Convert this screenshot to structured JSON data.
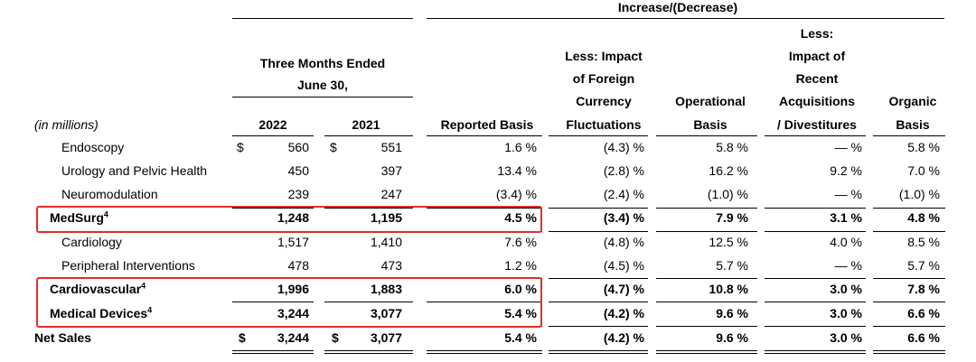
{
  "header": {
    "increase_group": "Increase/(Decrease)",
    "three_months_line1": "Three Months Ended",
    "three_months_line2": "June 30,",
    "in_millions": "(in millions)",
    "year_2022": "2022",
    "year_2021": "2021",
    "reported_basis": "Reported Basis",
    "fx_line1": "Less: Impact",
    "fx_line2": "of Foreign",
    "fx_line3": "Currency",
    "fx_line4": "Fluctuations",
    "op_line1": "Operational",
    "op_line2": "Basis",
    "acq_line1": "Less:",
    "acq_line2": "Impact of",
    "acq_line3": "Recent",
    "acq_line4": "Acquisitions",
    "acq_line5": "/ Divestitures",
    "org_line1": "Organic",
    "org_line2": "Basis"
  },
  "currency_symbol": "$",
  "footnote_marker": "4",
  "rows": [
    {
      "label": "Endoscopy",
      "v2022": "560",
      "v2021": "551",
      "reported": "1.6 %",
      "fx": "(4.3) %",
      "operational": "5.8 %",
      "acq": "— %",
      "organic": "5.8 %"
    },
    {
      "label": "Urology and Pelvic Health",
      "v2022": "450",
      "v2021": "397",
      "reported": "13.4 %",
      "fx": "(2.8) %",
      "operational": "16.2 %",
      "acq": "9.2 %",
      "organic": "7.0 %"
    },
    {
      "label": "Neuromodulation",
      "v2022": "239",
      "v2021": "247",
      "reported": "(3.4) %",
      "fx": "(2.4) %",
      "operational": "(1.0) %",
      "acq": "— %",
      "organic": "(1.0) %"
    },
    {
      "label": "MedSurg",
      "v2022": "1,248",
      "v2021": "1,195",
      "reported": "4.5 %",
      "fx": "(3.4) %",
      "operational": "7.9 %",
      "acq": "3.1 %",
      "organic": "4.8 %"
    },
    {
      "label": "Cardiology",
      "v2022": "1,517",
      "v2021": "1,410",
      "reported": "7.6 %",
      "fx": "(4.8) %",
      "operational": "12.5 %",
      "acq": "4.0 %",
      "organic": "8.5 %"
    },
    {
      "label": "Peripheral Interventions",
      "v2022": "478",
      "v2021": "473",
      "reported": "1.2 %",
      "fx": "(4.5) %",
      "operational": "5.7 %",
      "acq": "— %",
      "organic": "5.7 %"
    },
    {
      "label": "Cardiovascular",
      "v2022": "1,996",
      "v2021": "1,883",
      "reported": "6.0 %",
      "fx": "(4.7) %",
      "operational": "10.8 %",
      "acq": "3.0 %",
      "organic": "7.8 %"
    },
    {
      "label": "Medical Devices",
      "v2022": "3,244",
      "v2021": "3,077",
      "reported": "5.4 %",
      "fx": "(4.2) %",
      "operational": "9.6 %",
      "acq": "3.0 %",
      "organic": "6.6 %"
    },
    {
      "label": "Net Sales",
      "v2022": "3,244",
      "v2021": "3,077",
      "reported": "5.4 %",
      "fx": "(4.2) %",
      "operational": "9.6 %",
      "acq": "3.0 %",
      "organic": "6.6 %"
    }
  ]
}
